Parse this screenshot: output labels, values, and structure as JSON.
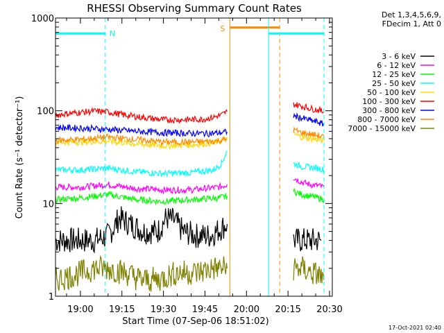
{
  "chart_data": {
    "type": "line",
    "title": "RHESSI Observing Summary Count Rates",
    "xlabel": "Start Time (07-Sep-06 18:51:02)",
    "ylabel": "Count Rate (s⁻¹ detector⁻¹)",
    "y_scale": "log",
    "ylim": [
      1,
      1000
    ],
    "x_tick_labels": [
      "19:00",
      "19:15",
      "19:30",
      "19:45",
      "20:00",
      "20:15",
      "20:30"
    ],
    "y_tick_labels": [
      "1",
      "10",
      "100",
      "1000"
    ],
    "legend_placement": "right",
    "legend_header": [
      "Det 1,3,4,5,6,9,",
      "FDecim 1, Att 0"
    ],
    "series": [
      {
        "name": "3 - 6 keV",
        "color": "#000000",
        "segments": [
          {
            "x": [
              "18:51",
              "18:58",
              "19:05",
              "19:10",
              "19:12",
              "19:14",
              "19:18",
              "19:23",
              "19:28",
              "19:31",
              "19:34",
              "19:37",
              "19:42",
              "19:47",
              "19:53"
            ],
            "y": [
              4,
              4,
              4,
              4.5,
              5.5,
              7,
              6,
              5,
              5,
              7,
              6.5,
              5,
              4.5,
              4.5,
              6
            ]
          },
          {
            "x": [
              "20:17",
              "20:20",
              "20:23",
              "20:25",
              "20:27"
            ],
            "y": [
              4,
              4,
              4,
              4,
              4
            ]
          }
        ]
      },
      {
        "name": "6 - 12 keV",
        "color": "#ff00ff",
        "segments": [
          {
            "x": [
              "18:51",
              "19:00",
              "19:10",
              "19:20",
              "19:30",
              "19:40",
              "19:50",
              "19:53"
            ],
            "y": [
              15,
              15,
              16,
              14.5,
              14,
              14,
              15,
              16
            ]
          },
          {
            "x": [
              "20:17",
              "20:20",
              "20:23",
              "20:26",
              "20:28"
            ],
            "y": [
              19,
              17,
              16,
              15.5,
              15
            ]
          }
        ]
      },
      {
        "name": "12 - 25 keV",
        "color": "#00ff00",
        "segments": [
          {
            "x": [
              "18:51",
              "19:00",
              "19:10",
              "19:20",
              "19:30",
              "19:40",
              "19:50",
              "19:53"
            ],
            "y": [
              11,
              11.5,
              12.5,
              11,
              10.5,
              11,
              11.5,
              12
            ]
          },
          {
            "x": [
              "20:17",
              "20:20",
              "20:23",
              "20:26",
              "20:28"
            ],
            "y": [
              13.5,
              12.5,
              12,
              11.5,
              11
            ]
          }
        ]
      },
      {
        "name": "25 - 50 keV",
        "color": "#00ffff",
        "segments": [
          {
            "x": [
              "18:51",
              "19:00",
              "19:10",
              "19:20",
              "19:30",
              "19:40",
              "19:48",
              "19:51",
              "19:53"
            ],
            "y": [
              23,
              23,
              24,
              22,
              21,
              21.5,
              23,
              27,
              37
            ]
          },
          {
            "x": [
              "20:17",
              "20:20",
              "20:23",
              "20:26",
              "20:28"
            ],
            "y": [
              27,
              25,
              24.5,
              24,
              23
            ]
          }
        ]
      },
      {
        "name": "50 - 100 keV",
        "color": "#ffd700",
        "segments": [
          {
            "x": [
              "18:51",
              "19:00",
              "19:10",
              "19:20",
              "19:30",
              "19:40",
              "19:48",
              "19:53"
            ],
            "y": [
              46,
              46,
              47,
              44,
              42,
              43,
              45,
              50
            ]
          },
          {
            "x": [
              "20:17",
              "20:20",
              "20:23",
              "20:26",
              "20:28"
            ],
            "y": [
              56,
              52,
              50,
              49,
              47
            ]
          }
        ]
      },
      {
        "name": "100 - 300 keV",
        "color": "#ff0000",
        "segments": [
          {
            "x": [
              "18:51",
              "18:58",
              "19:05",
              "19:10",
              "19:16",
              "19:22",
              "19:30",
              "19:37",
              "19:44",
              "19:48",
              "19:51",
              "19:53"
            ],
            "y": [
              90,
              95,
              99,
              97,
              90,
              85,
              80,
              80,
              81,
              85,
              90,
              98
            ]
          },
          {
            "x": [
              "20:17",
              "20:20",
              "20:23",
              "20:26",
              "20:28"
            ],
            "y": [
              118,
              112,
              106,
              102,
              97
            ]
          }
        ]
      },
      {
        "name": "300 - 800 keV",
        "color": "#0000ff",
        "segments": [
          {
            "x": [
              "18:51",
              "19:00",
              "19:10",
              "19:20",
              "19:30",
              "19:40",
              "19:48",
              "19:53"
            ],
            "y": [
              66,
              65,
              63,
              60,
              58,
              57,
              57,
              59
            ]
          },
          {
            "x": [
              "20:17",
              "20:20",
              "20:23",
              "20:26",
              "20:28"
            ],
            "y": [
              88,
              83,
              79,
              75,
              71
            ]
          }
        ]
      },
      {
        "name": "800 - 7000 keV",
        "color": "#ff8c00",
        "segments": [
          {
            "x": [
              "18:51",
              "19:00",
              "19:10",
              "19:20",
              "19:30",
              "19:40",
              "19:48",
              "19:53"
            ],
            "y": [
              48,
              49,
              52,
              49,
              46,
              46,
              47,
              49
            ]
          },
          {
            "x": [
              "20:17",
              "20:20",
              "20:23",
              "20:26",
              "20:28"
            ],
            "y": [
              62,
              58,
              56,
              54,
              52
            ]
          }
        ]
      },
      {
        "name": "7000 - 15000 keV",
        "color": "#808000",
        "segments": [
          {
            "x": [
              "18:51",
              "18:58",
              "19:05",
              "19:10",
              "19:16",
              "19:22",
              "19:28",
              "19:35",
              "19:42",
              "19:48",
              "19:53"
            ],
            "y": [
              1.5,
              1.7,
              2,
              2,
              1.8,
              1.5,
              1.5,
              1.8,
              1.8,
              2,
              2
            ]
          },
          {
            "x": [
              "20:17",
              "20:20",
              "20:23",
              "20:26",
              "20:28"
            ],
            "y": [
              2,
              2,
              1.8,
              1.7,
              1.5
            ]
          }
        ]
      }
    ],
    "annotations": [
      {
        "label": "N",
        "color": "#00ffff",
        "style": "dashed",
        "x": "19:09",
        "bar": [
          "18:51",
          "19:09"
        ],
        "bar_y": 680
      },
      {
        "label": "S",
        "color": "#ff8c00",
        "style": "solid",
        "x": "19:54",
        "bar": [
          "19:54",
          "20:12"
        ],
        "bar_y": 790
      },
      {
        "label": "",
        "color": "#ff8c00",
        "style": "dashed",
        "x": "20:12"
      },
      {
        "label": "",
        "color": "#00ffff",
        "style": "solid",
        "x": "20:08",
        "bar": [
          "20:08",
          "20:28"
        ],
        "bar_y": 680
      },
      {
        "label": "",
        "color": "#00ffff",
        "style": "solid",
        "x": "18:51"
      },
      {
        "label": "",
        "color": "#00ffff",
        "style": "dashed",
        "x": "20:28"
      }
    ],
    "footer": "17-Oct-2021 02:40"
  }
}
